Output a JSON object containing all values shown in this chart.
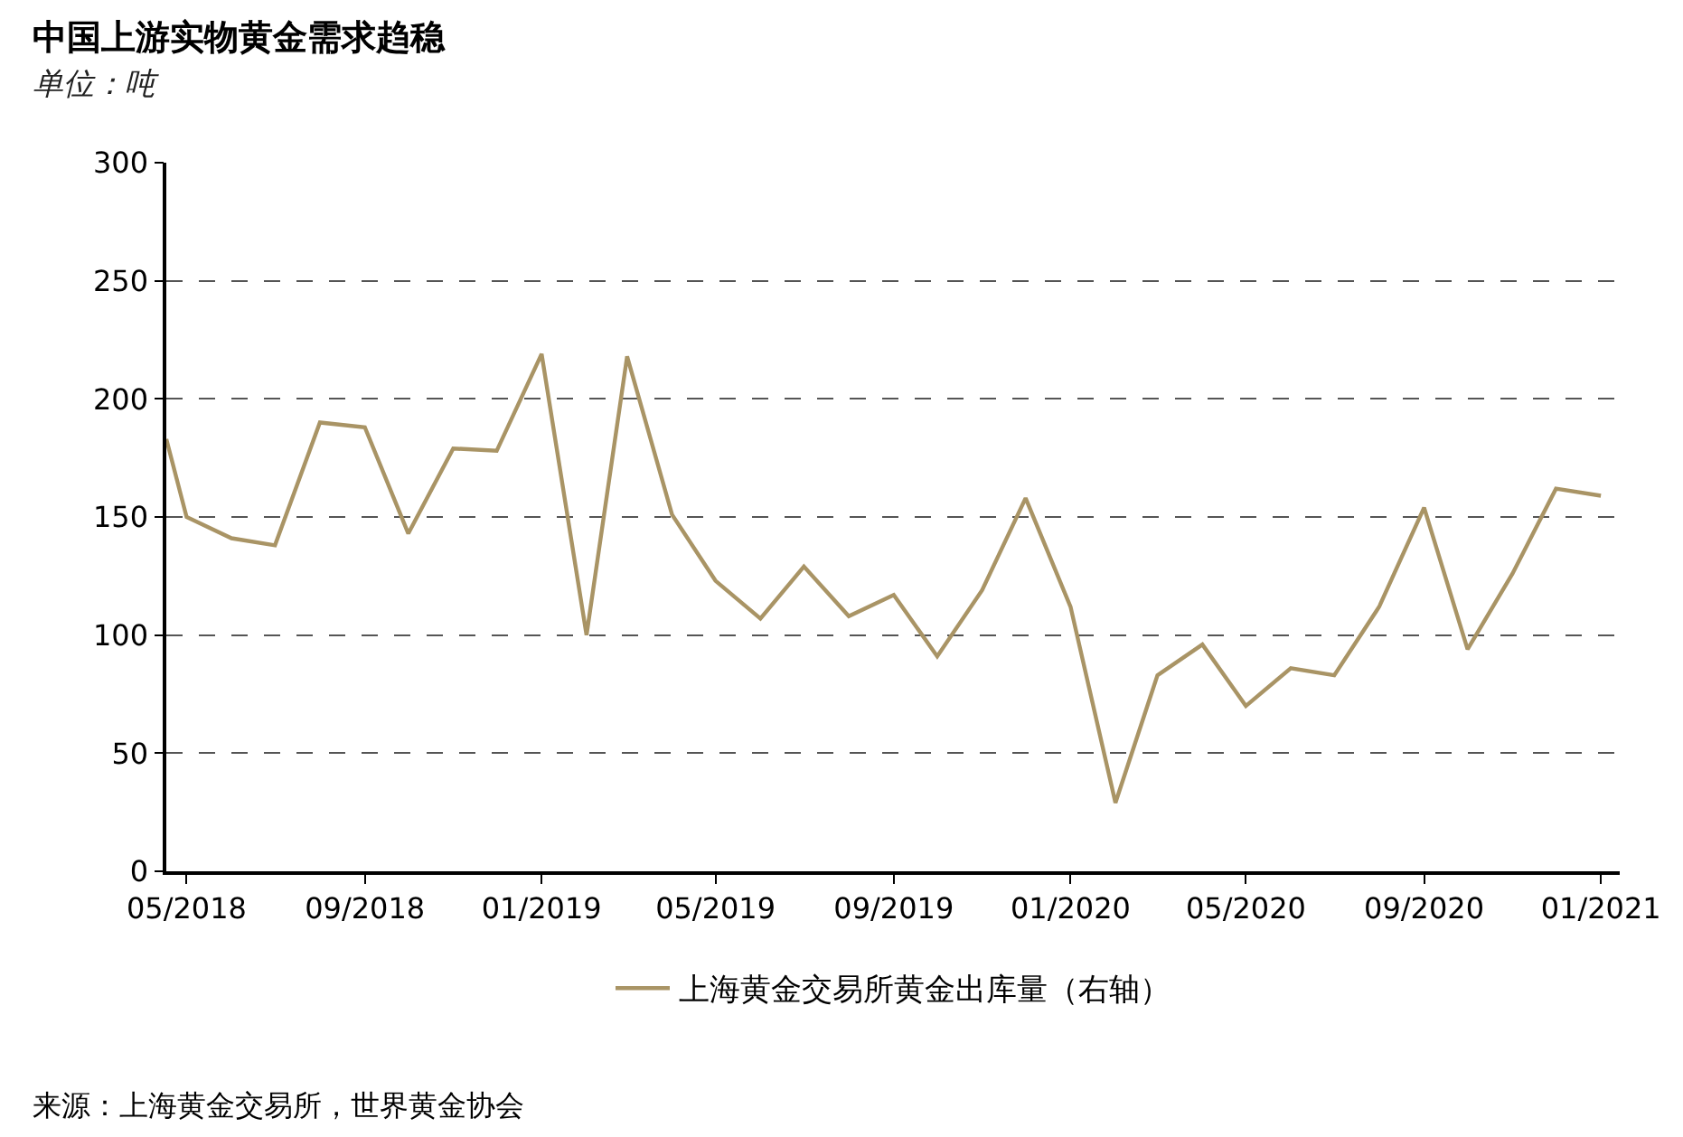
{
  "chart_data": {
    "type": "line",
    "title": "中国上游实物黄金需求趋稳",
    "subtitle": "单位：吨",
    "x": [
      "2018-04-17",
      "2018-05-01",
      "2018-06-01",
      "2018-07-01",
      "2018-08-01",
      "2018-09-01",
      "2018-10-01",
      "2018-11-01",
      "2018-12-01",
      "2019-01-01",
      "2019-02-01",
      "2019-03-01",
      "2019-04-01",
      "2019-05-01",
      "2019-06-01",
      "2019-07-01",
      "2019-08-01",
      "2019-09-01",
      "2019-10-01",
      "2019-11-01",
      "2019-12-01",
      "2020-01-01",
      "2020-02-01",
      "2020-03-01",
      "2020-04-01",
      "2020-05-01",
      "2020-06-01",
      "2020-07-01",
      "2020-08-01",
      "2020-09-01",
      "2020-10-01",
      "2020-11-01",
      "2020-12-01",
      "2021-01-01"
    ],
    "series": [
      {
        "name": "上海黄金交易所黄金出库量（右轴）",
        "color": "#a99465",
        "values": [
          183,
          150,
          141,
          138,
          190,
          188,
          143,
          179,
          178,
          219,
          100,
          218,
          151,
          123,
          107,
          129,
          108,
          117,
          91,
          119,
          158,
          112,
          29,
          83,
          96,
          70,
          86,
          83,
          112,
          154,
          94,
          126,
          162,
          159
        ]
      }
    ],
    "xlim": [
      "2018-04-17",
      "2021-01-14"
    ],
    "xticks": [
      {
        "value": "2018-05-01",
        "label": "05/2018"
      },
      {
        "value": "2018-09-01",
        "label": "09/2018"
      },
      {
        "value": "2019-01-01",
        "label": "01/2019"
      },
      {
        "value": "2019-05-01",
        "label": "05/2019"
      },
      {
        "value": "2019-09-01",
        "label": "09/2019"
      },
      {
        "value": "2020-01-01",
        "label": "01/2020"
      },
      {
        "value": "2020-05-01",
        "label": "05/2020"
      },
      {
        "value": "2020-09-01",
        "label": "09/2020"
      },
      {
        "value": "2021-01-01",
        "label": "01/2021"
      }
    ],
    "ylim": [
      0,
      300
    ],
    "yticks": [
      0,
      50,
      100,
      150,
      200,
      250,
      300
    ],
    "grid": "y",
    "legend": "bottom",
    "marker": "none",
    "line_style": "solid",
    "annotations": [
      "来源：上海黄金交易所，世界黄金协会"
    ]
  }
}
